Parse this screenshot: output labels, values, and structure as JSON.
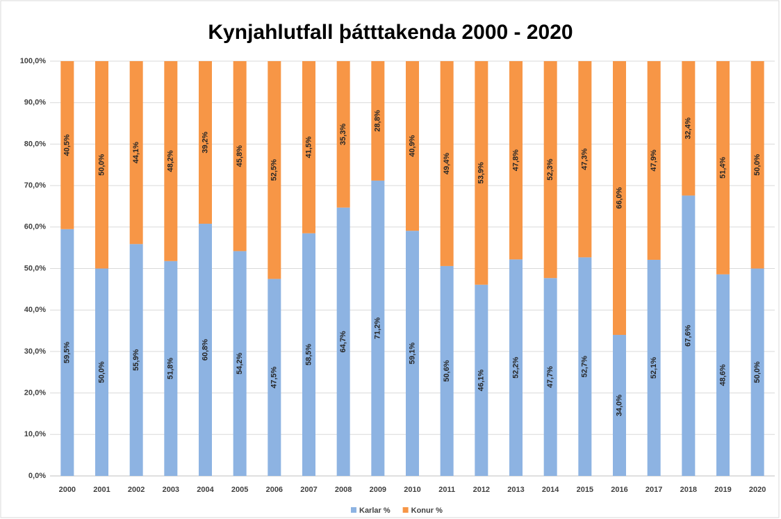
{
  "chart_data": {
    "type": "stacked_bar",
    "title": "Kynjahlutfall þátttakenda 2000 - 2020",
    "categories": [
      "2000",
      "2001",
      "2002",
      "2003",
      "2004",
      "2005",
      "2006",
      "2007",
      "2008",
      "2009",
      "2010",
      "2011",
      "2012",
      "2013",
      "2014",
      "2015",
      "2016",
      "2017",
      "2018",
      "2019",
      "2020"
    ],
    "series": [
      {
        "name": "Karlar %",
        "color": "#8db3e2",
        "values": [
          59.5,
          50.0,
          55.9,
          51.8,
          60.8,
          54.2,
          47.5,
          58.5,
          64.7,
          71.2,
          59.1,
          50.6,
          46.1,
          52.2,
          47.7,
          52.7,
          34.0,
          52.1,
          67.6,
          48.6,
          50.0
        ],
        "value_labels": [
          "59,5%",
          "50,0%",
          "55,9%",
          "51,8%",
          "60,8%",
          "54,2%",
          "47,5%",
          "58,5%",
          "64,7%",
          "71,2%",
          "59,1%",
          "50,6%",
          "46,1%",
          "52,2%",
          "47,7%",
          "52,7%",
          "34,0%",
          "52,1%",
          "67,6%",
          "48,6%",
          "50,0%"
        ]
      },
      {
        "name": "Konur %",
        "color": "#f79646",
        "values": [
          40.5,
          50.0,
          44.1,
          48.2,
          39.2,
          45.8,
          52.5,
          41.5,
          35.3,
          28.8,
          40.9,
          49.4,
          53.9,
          47.8,
          52.3,
          47.3,
          66.0,
          47.9,
          32.4,
          51.4,
          50.0
        ],
        "value_labels": [
          "40,5%",
          "50,0%",
          "44,1%",
          "48,2%",
          "39,2%",
          "45,8%",
          "52,5%",
          "41,5%",
          "35,3%",
          "28,8%",
          "40,9%",
          "49,4%",
          "53,9%",
          "47,8%",
          "52,3%",
          "47,3%",
          "66,0%",
          "47,9%",
          "32,4%",
          "51,4%",
          "50,0%"
        ]
      }
    ],
    "ylim": [
      0,
      100
    ],
    "yticks": [
      {
        "value": 0,
        "label": "0,0%"
      },
      {
        "value": 10,
        "label": "10,0%"
      },
      {
        "value": 20,
        "label": "20,0%"
      },
      {
        "value": 30,
        "label": "30,0%"
      },
      {
        "value": 40,
        "label": "40,0%"
      },
      {
        "value": 50,
        "label": "50,0%"
      },
      {
        "value": 60,
        "label": "60,0%"
      },
      {
        "value": 70,
        "label": "70,0%"
      },
      {
        "value": 80,
        "label": "80,0%"
      },
      {
        "value": 90,
        "label": "90,0%"
      },
      {
        "value": 100,
        "label": "100,0%"
      }
    ],
    "grid": true,
    "legend": "bottom"
  }
}
